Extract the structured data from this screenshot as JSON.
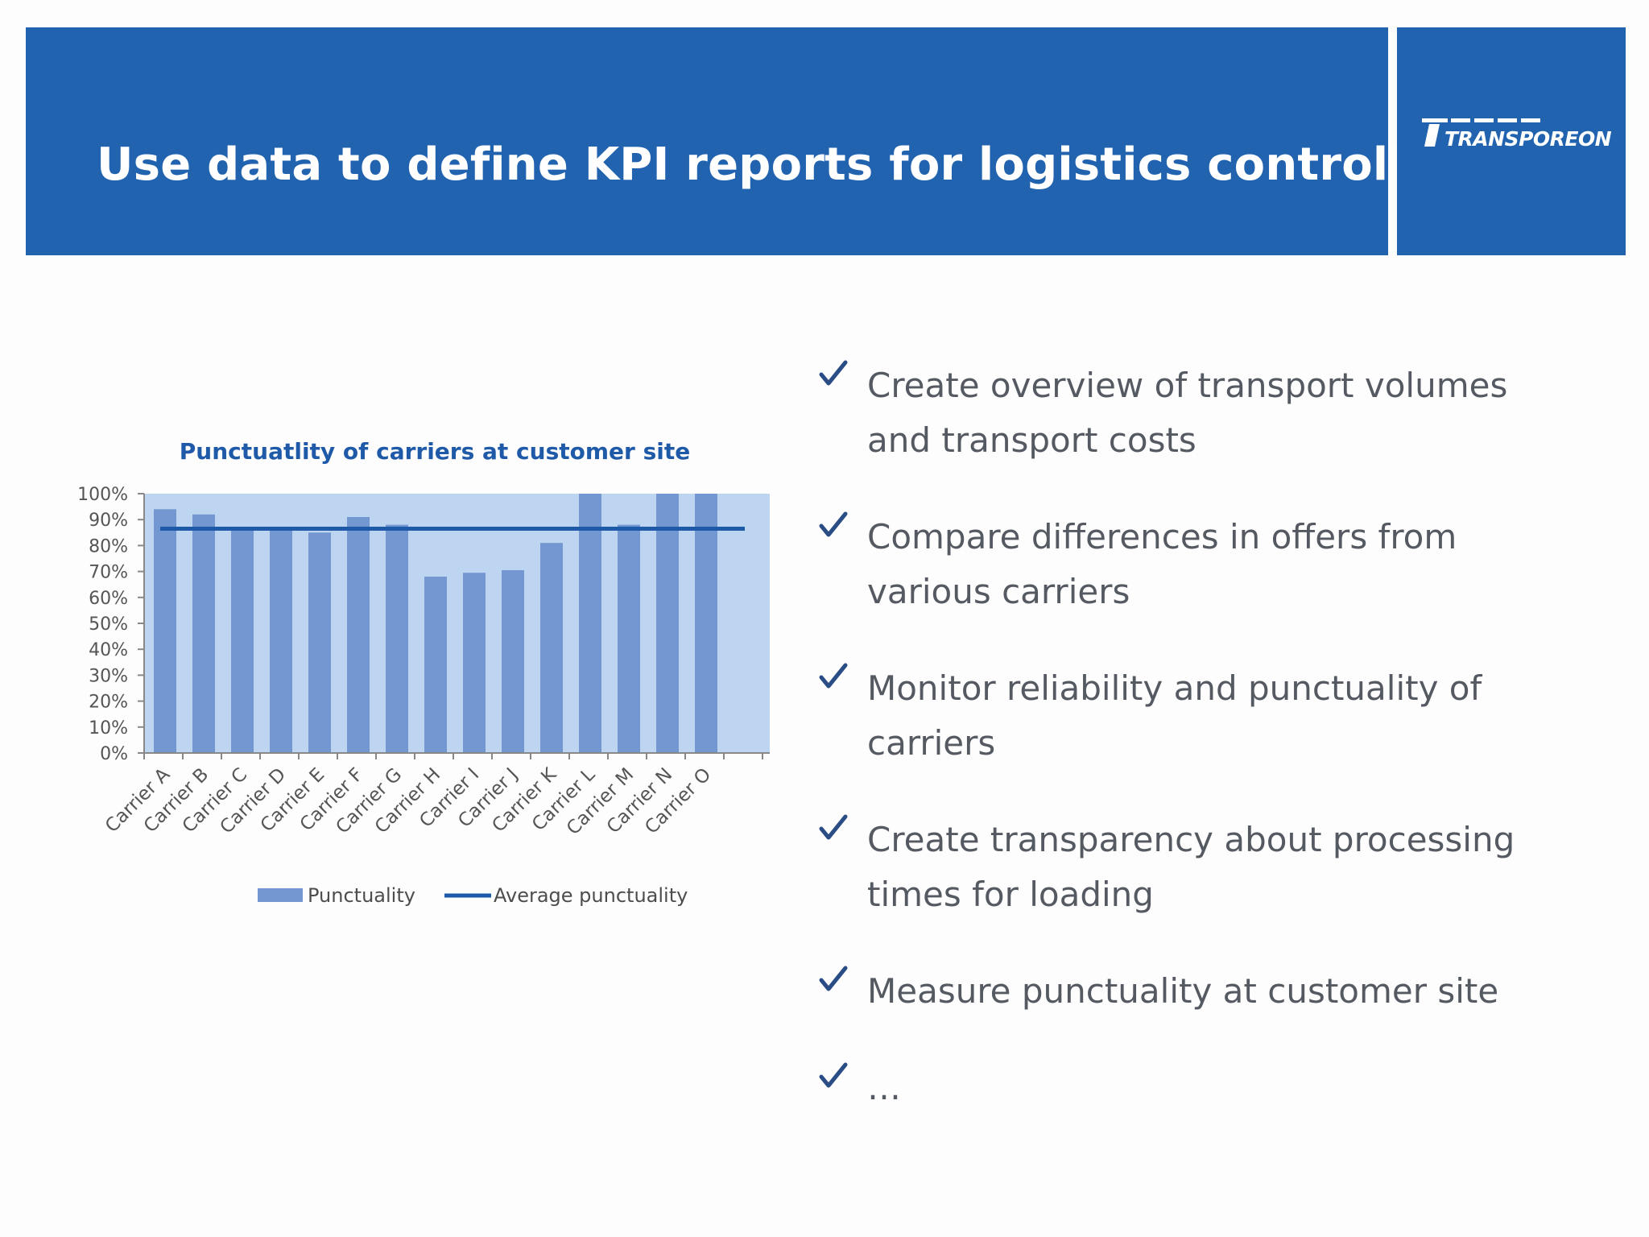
{
  "header": {
    "title": "Use data to define KPI reports for logistics controlling",
    "logo_text": "TRANSPOREON"
  },
  "colors": {
    "header_blue": "#2163af",
    "plot_background": "#bdd5f0",
    "bar_fill": "#7397d1",
    "average_line": "#1f5aa8",
    "title_blue": "#1f5aa8",
    "bullet_text": "#555a62",
    "check_color": "#2a4d86"
  },
  "chart_data": {
    "type": "bar",
    "title": "Punctuatlity of carriers at customer site",
    "categories": [
      "Carrier A",
      "Carrier B",
      "Carrier C",
      "Carrier D",
      "Carrier E",
      "Carrier F",
      "Carrier G",
      "Carrier H",
      "Carrier I",
      "Carrier J",
      "Carrier K",
      "Carrier L",
      "Carrier M",
      "Carrier N",
      "Carrier O"
    ],
    "series": [
      {
        "name": "Punctuality",
        "type": "bar",
        "values": [
          0.94,
          0.92,
          0.87,
          0.86,
          0.85,
          0.91,
          0.88,
          0.68,
          0.695,
          0.705,
          0.81,
          1.0,
          0.88,
          1.0,
          1.0
        ]
      },
      {
        "name": "Average punctuality",
        "type": "line",
        "values": [
          0.865,
          0.865,
          0.865,
          0.865,
          0.865,
          0.865,
          0.865,
          0.865,
          0.865,
          0.865,
          0.865,
          0.865,
          0.865,
          0.865,
          0.865
        ]
      }
    ],
    "y_ticks": [
      "0%",
      "10%",
      "20%",
      "30%",
      "40%",
      "50%",
      "60%",
      "70%",
      "80%",
      "90%",
      "100%"
    ],
    "ylim": [
      0,
      1
    ],
    "legend_position": "bottom",
    "grid": false
  },
  "bullets": [
    {
      "lines": [
        "Create overview of transport volumes",
        "and transport costs"
      ]
    },
    {
      "lines": [
        "Compare differences in offers from",
        "various carriers"
      ]
    },
    {
      "lines": [
        "Monitor reliability and punctuality of",
        "carriers"
      ]
    },
    {
      "lines": [
        "Create transparency about processing",
        "times for loading"
      ]
    },
    {
      "lines": [
        "Measure punctuality at customer site"
      ]
    },
    {
      "lines": [
        "…"
      ]
    }
  ],
  "icons": {
    "bullet_icon": "checkmark-icon",
    "logo_icon": "transporeon-logo-icon"
  }
}
